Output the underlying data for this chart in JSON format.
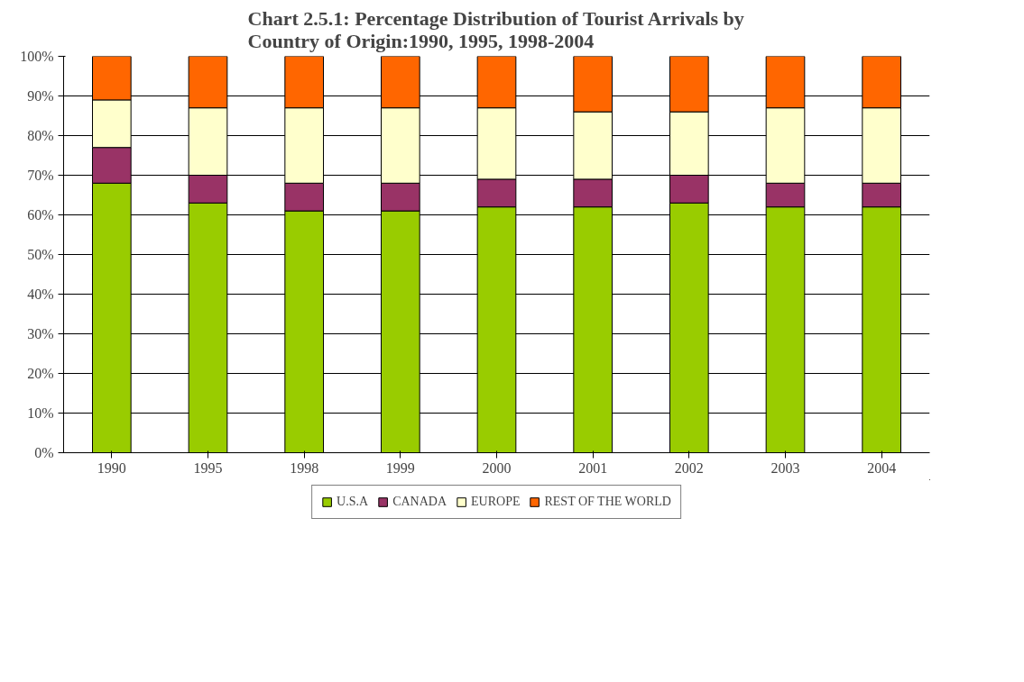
{
  "chart_data": {
    "type": "bar",
    "stacked": true,
    "title": "Chart 2.5.1: Percentage Distribution of Tourist Arrivals by Country of Origin:1990, 1995, 1998-2004",
    "categories": [
      "1990",
      "1995",
      "1998",
      "1999",
      "2000",
      "2001",
      "2002",
      "2003",
      "2004"
    ],
    "series": [
      {
        "name": "U.S.A",
        "color": "#99cc00",
        "values": [
          68,
          63,
          61,
          61,
          62,
          62,
          63,
          62,
          62
        ]
      },
      {
        "name": "CANADA",
        "color": "#993366",
        "values": [
          9,
          7,
          7,
          7,
          7,
          7,
          7,
          6,
          6
        ]
      },
      {
        "name": "EUROPE",
        "color": "#ffffcc",
        "values": [
          12,
          17,
          19,
          19,
          18,
          17,
          16,
          19,
          19
        ]
      },
      {
        "name": "REST OF THE WORLD",
        "color": "#ff6600",
        "values": [
          11,
          13,
          13,
          13,
          13,
          14,
          14,
          13,
          13
        ]
      }
    ],
    "ylim": [
      0,
      100
    ],
    "yticks": [
      {
        "value": 0,
        "label": "0%"
      },
      {
        "value": 10,
        "label": "10%"
      },
      {
        "value": 20,
        "label": "20%"
      },
      {
        "value": 30,
        "label": "30%"
      },
      {
        "value": 40,
        "label": "40%"
      },
      {
        "value": 50,
        "label": "50%"
      },
      {
        "value": 60,
        "label": "60%"
      },
      {
        "value": 70,
        "label": "70%"
      },
      {
        "value": 80,
        "label": "80%"
      },
      {
        "value": 90,
        "label": "90%"
      },
      {
        "value": 100,
        "label": "100%"
      }
    ],
    "grid": "y",
    "legend": "bottom"
  }
}
